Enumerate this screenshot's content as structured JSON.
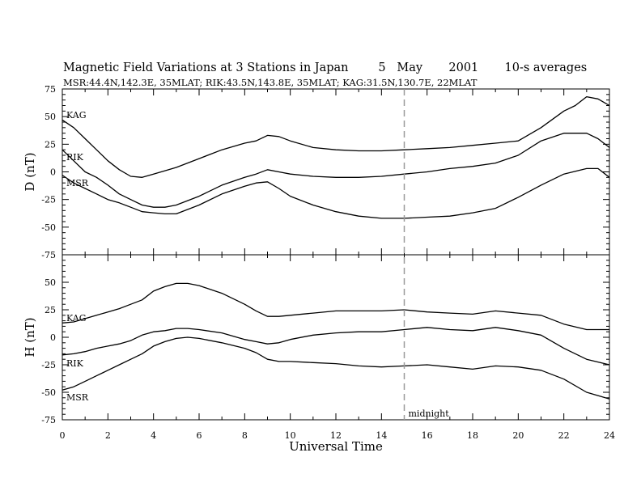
{
  "title": "Magnetic Field Variations at 3 Stations in Japan        5   May       2001       10-s averages",
  "subtitle": "MSR:44.4N,142.3E, 35MLAT;   RIK:43.5N,143.8E, 35MLAT;   KAG:31.5N,130.7E, 22MLAT",
  "annotation": "midnight",
  "chart_data": [
    {
      "type": "line",
      "ylabel": "D (nT)",
      "xlabel": "",
      "xlim": [
        0,
        24
      ],
      "ylim": [
        -75,
        75
      ],
      "yticks": [
        75,
        50,
        25,
        0,
        -25,
        -50,
        -75
      ],
      "midnight_x": 15,
      "series": [
        {
          "name": "KAG",
          "x": [
            0,
            0.5,
            1,
            1.5,
            2,
            2.5,
            3,
            3.5,
            4,
            4.5,
            5,
            6,
            7,
            8,
            8.5,
            9,
            9.5,
            10,
            11,
            12,
            13,
            14,
            15,
            16,
            17,
            18,
            19,
            20,
            21,
            22,
            22.5,
            23,
            23.5,
            24
          ],
          "y": [
            47,
            40,
            30,
            20,
            10,
            2,
            -4,
            -5,
            -2,
            1,
            4,
            12,
            20,
            26,
            28,
            33,
            32,
            28,
            22,
            20,
            19,
            19,
            20,
            21,
            22,
            24,
            26,
            28,
            40,
            55,
            60,
            68,
            66,
            60
          ]
        },
        {
          "name": "RIK",
          "x": [
            0,
            0.5,
            1,
            1.5,
            2,
            2.5,
            3,
            3.5,
            4,
            4.5,
            5,
            6,
            7,
            8,
            8.5,
            9,
            9.5,
            10,
            11,
            12,
            13,
            14,
            15,
            16,
            17,
            18,
            19,
            20,
            21,
            22,
            23,
            23.5,
            24
          ],
          "y": [
            20,
            10,
            0,
            -5,
            -12,
            -20,
            -25,
            -30,
            -32,
            -32,
            -30,
            -22,
            -12,
            -5,
            -2,
            2,
            0,
            -2,
            -4,
            -5,
            -5,
            -4,
            -2,
            0,
            3,
            5,
            8,
            15,
            28,
            35,
            35,
            30,
            22
          ]
        },
        {
          "name": "MSR",
          "x": [
            0,
            0.5,
            1,
            1.5,
            2,
            2.5,
            3,
            3.5,
            4,
            4.5,
            5,
            6,
            7,
            8,
            8.5,
            9,
            9.5,
            10,
            11,
            12,
            13,
            14,
            15,
            16,
            17,
            18,
            19,
            20,
            21,
            22,
            23,
            23.5,
            24
          ],
          "y": [
            -3,
            -10,
            -15,
            -20,
            -25,
            -28,
            -32,
            -36,
            -37,
            -38,
            -38,
            -30,
            -20,
            -13,
            -10,
            -9,
            -15,
            -22,
            -30,
            -36,
            -40,
            -42,
            -42,
            -41,
            -40,
            -37,
            -33,
            -23,
            -12,
            -2,
            3,
            3,
            -5
          ]
        }
      ]
    },
    {
      "type": "line",
      "ylabel": "H (nT)",
      "xlabel": "Universal Time",
      "xlim": [
        0,
        24
      ],
      "ylim": [
        -75,
        75
      ],
      "yticks": [
        75,
        50,
        25,
        0,
        -25,
        -50,
        -75
      ],
      "xticks": [
        0,
        2,
        4,
        6,
        8,
        10,
        12,
        14,
        16,
        18,
        20,
        22,
        24
      ],
      "midnight_x": 15,
      "series": [
        {
          "name": "KAG",
          "x": [
            0,
            0.5,
            1,
            1.5,
            2,
            2.5,
            3,
            3.5,
            4,
            4.5,
            5,
            5.5,
            6,
            7,
            8,
            8.5,
            9,
            9.5,
            10,
            11,
            12,
            13,
            14,
            15,
            16,
            17,
            18,
            19,
            20,
            21,
            22,
            23,
            24
          ],
          "y": [
            13,
            14,
            17,
            20,
            23,
            26,
            30,
            34,
            42,
            46,
            49,
            49,
            47,
            40,
            30,
            24,
            19,
            19,
            20,
            22,
            24,
            24,
            24,
            25,
            23,
            22,
            21,
            24,
            22,
            20,
            12,
            7,
            7
          ]
        },
        {
          "name": "RIK",
          "x": [
            0,
            0.5,
            1,
            1.5,
            2,
            2.5,
            3,
            3.5,
            4,
            4.5,
            5,
            5.5,
            6,
            7,
            8,
            8.5,
            9,
            9.5,
            10,
            11,
            12,
            13,
            14,
            15,
            16,
            17,
            18,
            19,
            20,
            21,
            22,
            23,
            24
          ],
          "y": [
            -16,
            -15,
            -13,
            -10,
            -8,
            -6,
            -3,
            2,
            5,
            6,
            8,
            8,
            7,
            4,
            -2,
            -4,
            -6,
            -5,
            -2,
            2,
            4,
            5,
            5,
            7,
            9,
            7,
            6,
            9,
            6,
            2,
            -10,
            -20,
            -25
          ]
        },
        {
          "name": "MSR",
          "x": [
            0,
            0.5,
            1,
            1.5,
            2,
            2.5,
            3,
            3.5,
            4,
            4.5,
            5,
            5.5,
            6,
            7,
            8,
            8.5,
            9,
            9.5,
            10,
            11,
            12,
            13,
            14,
            15,
            16,
            17,
            18,
            19,
            20,
            21,
            22,
            23,
            24
          ],
          "y": [
            -48,
            -45,
            -40,
            -35,
            -30,
            -25,
            -20,
            -15,
            -8,
            -4,
            -1,
            0,
            -1,
            -5,
            -10,
            -14,
            -20,
            -22,
            -22,
            -23,
            -24,
            -26,
            -27,
            -26,
            -25,
            -27,
            -29,
            -26,
            -27,
            -30,
            -38,
            -50,
            -56
          ]
        }
      ]
    }
  ]
}
